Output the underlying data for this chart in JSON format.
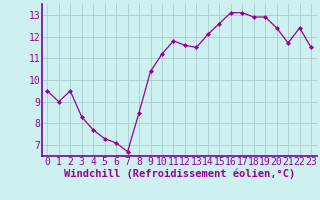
{
  "x": [
    0,
    1,
    2,
    3,
    4,
    5,
    6,
    7,
    8,
    9,
    10,
    11,
    12,
    13,
    14,
    15,
    16,
    17,
    18,
    19,
    20,
    21,
    22,
    23
  ],
  "y": [
    9.5,
    9.0,
    9.5,
    8.3,
    7.7,
    7.3,
    7.1,
    6.7,
    8.5,
    10.4,
    11.2,
    11.8,
    11.6,
    11.5,
    12.1,
    12.6,
    13.1,
    13.1,
    12.9,
    12.9,
    12.4,
    11.7,
    12.4,
    11.5
  ],
  "line_color": "#990099",
  "marker": "D",
  "marker_size": 2,
  "bg_color": "#cdf0f0",
  "grid_color": "#aacccc",
  "xlabel": "Windchill (Refroidissement éolien,°C)",
  "xlabel_color": "#990099",
  "tick_color": "#990099",
  "ylim": [
    6.5,
    13.5
  ],
  "xlim": [
    -0.5,
    23.5
  ],
  "yticks": [
    7,
    8,
    9,
    10,
    11,
    12,
    13
  ],
  "xticks": [
    0,
    1,
    2,
    3,
    4,
    5,
    6,
    7,
    8,
    9,
    10,
    11,
    12,
    13,
    14,
    15,
    16,
    17,
    18,
    19,
    20,
    21,
    22,
    23
  ],
  "spine_color": "#7700aa",
  "tick_fontsize": 7,
  "xlabel_fontsize": 7.5
}
